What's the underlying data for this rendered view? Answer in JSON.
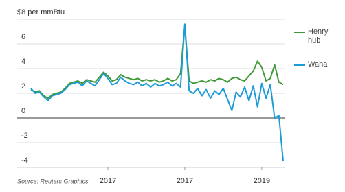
{
  "chart_data": {
    "type": "line",
    "source": "Source: Reuters Graphics",
    "categories": [
      null,
      null,
      null,
      null,
      null,
      null,
      null,
      null,
      null,
      null,
      null,
      null,
      null,
      null,
      null,
      null,
      null,
      null,
      "2017",
      null,
      null,
      null,
      null,
      null,
      null,
      null,
      null,
      null,
      null,
      null,
      null,
      null,
      null,
      null,
      null,
      null,
      "2017",
      null,
      null,
      null,
      null,
      null,
      null,
      null,
      null,
      null,
      null,
      null,
      null,
      null,
      null,
      null,
      null,
      null,
      "2019",
      null,
      null,
      null,
      null,
      null
    ],
    "series": [
      {
        "name": "Henry hub",
        "color": "#3d9a36",
        "values": [
          2.3,
          2.1,
          2.2,
          1.8,
          1.6,
          1.9,
          2.0,
          2.1,
          2.4,
          2.8,
          2.9,
          3.0,
          2.8,
          3.1,
          3.0,
          2.9,
          3.3,
          3.7,
          3.4,
          3.0,
          3.1,
          3.5,
          3.3,
          3.2,
          3.1,
          3.2,
          3.0,
          3.1,
          3.0,
          3.1,
          2.9,
          3.0,
          3.2,
          3.0,
          3.1,
          3.6,
          7.5,
          3.0,
          2.8,
          2.9,
          3.0,
          2.9,
          3.1,
          3.0,
          3.2,
          3.1,
          2.9,
          3.2,
          3.3,
          3.1,
          3.0,
          3.4,
          3.8,
          4.6,
          4.1,
          3.0,
          3.2,
          4.3,
          2.9,
          2.7
        ]
      },
      {
        "name": "Waha",
        "color": "#1b9bd8",
        "values": [
          2.4,
          2.0,
          2.1,
          1.7,
          1.4,
          1.8,
          1.9,
          2.0,
          2.3,
          2.7,
          2.8,
          2.9,
          2.6,
          3.0,
          2.8,
          2.6,
          3.1,
          3.6,
          3.2,
          2.7,
          2.8,
          3.3,
          3.0,
          2.8,
          2.7,
          2.9,
          2.6,
          2.8,
          2.5,
          2.8,
          2.6,
          2.7,
          2.9,
          2.6,
          2.8,
          2.5,
          7.6,
          2.2,
          2.0,
          2.4,
          1.8,
          2.3,
          1.6,
          2.2,
          1.9,
          2.4,
          1.5,
          0.6,
          2.1,
          1.7,
          2.5,
          1.4,
          2.6,
          0.9,
          2.8,
          1.6,
          2.7,
          0.0,
          0.2,
          -3.5
        ]
      }
    ],
    "ylim": [
      -4,
      8
    ],
    "yticks": [
      -4,
      -2,
      0,
      2,
      4,
      6,
      {
        "value": 8,
        "label": "$8 per mmBtu"
      }
    ],
    "grid": true,
    "legend": "right"
  }
}
